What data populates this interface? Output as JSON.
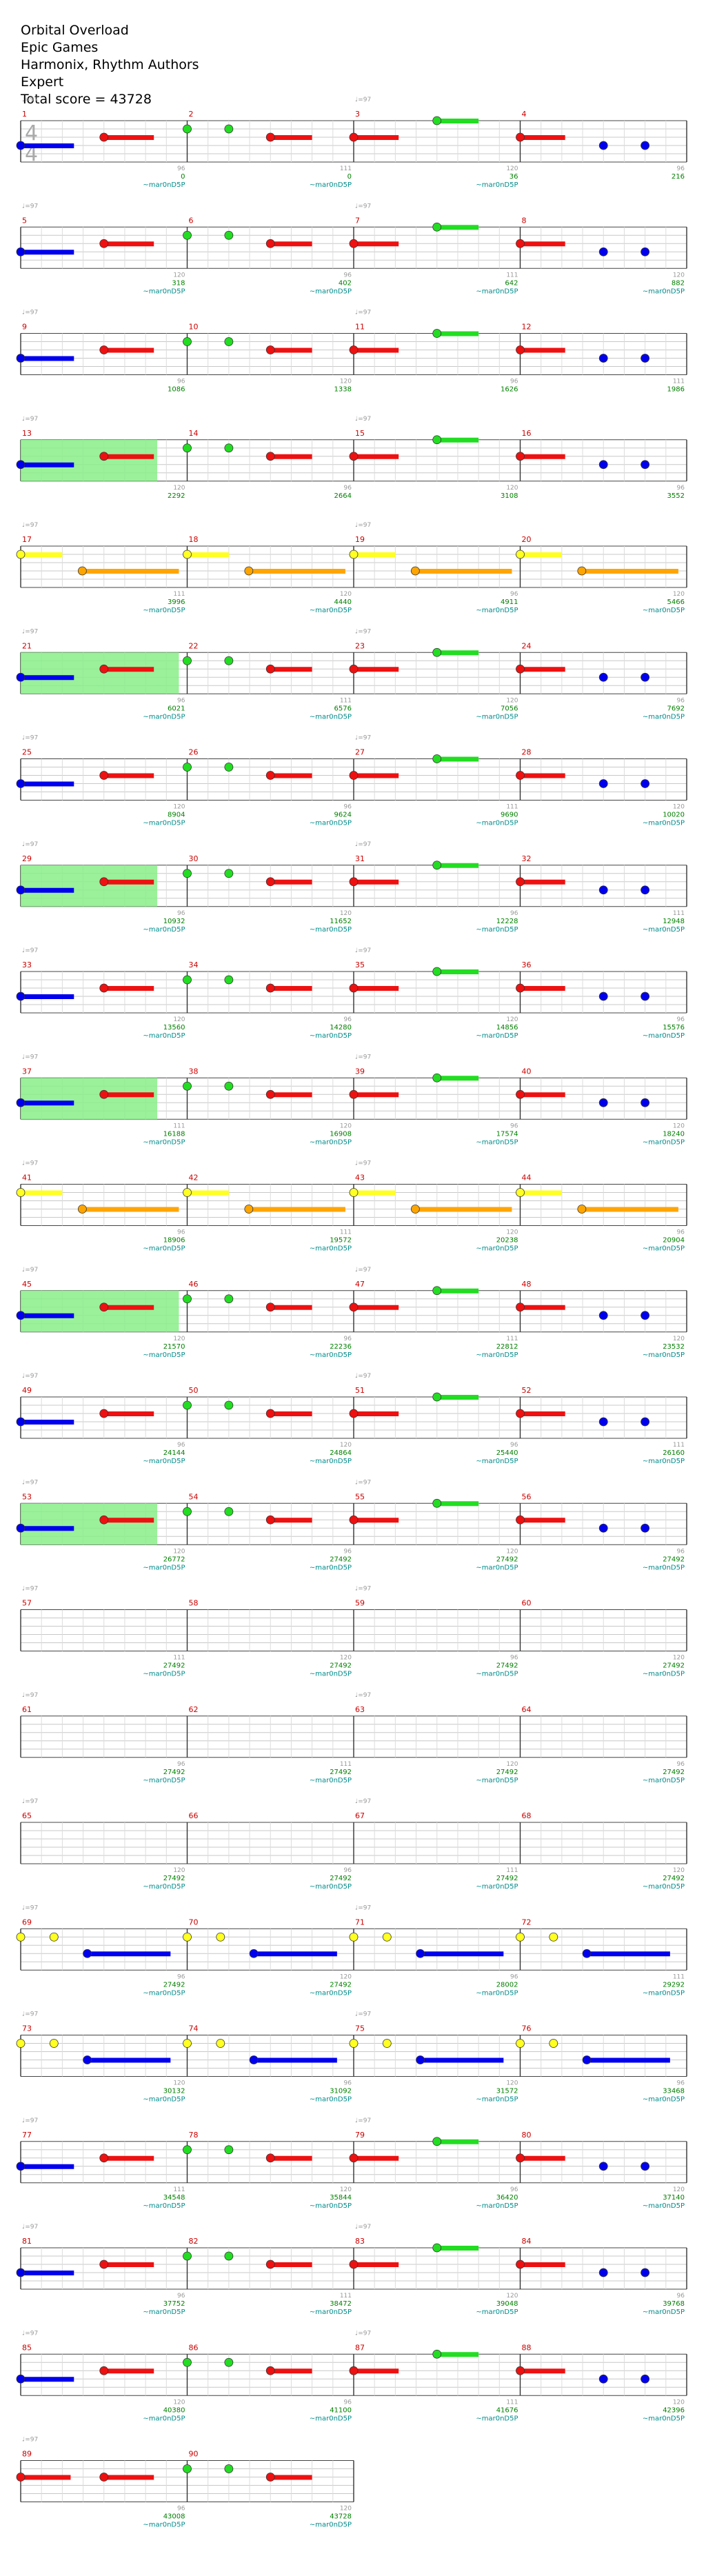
{
  "header": {
    "song_title": "Orbital Overload",
    "artist": "Epic Games",
    "authors": "Harmonix, Rhythm Authors",
    "difficulty": "Expert",
    "total_score_line": "Total score = 43728"
  },
  "time_signature": {
    "numerator": "4",
    "denominator": "4"
  },
  "tempo_marker": "♩=97",
  "colors": {
    "green": "#22dd22",
    "red": "#ee1111",
    "yellow": "#ffff22",
    "blue": "#0000ee",
    "orange": "#ffa500",
    "overdrive_region": "#88ee88",
    "measure_number": "#cc0000",
    "beat_number": "#999999",
    "score_text": "#008000",
    "tag_text": "#008b8b"
  },
  "chart_data": {
    "type": "table",
    "note": "Rock Band style drum/guitar chart: 90 measures; each measure lists bar number, cumulative score and beat-position tags printed beneath it.",
    "measures": [
      {
        "n": "1",
        "score": "",
        "tag": "",
        "tempo": true,
        "ts": true
      },
      {
        "n": "2",
        "score": "0",
        "tag": "~mar0nD5P",
        "tempo": false
      },
      {
        "n": "3",
        "score": "0",
        "tag": "~mar0nD5P",
        "tempo": true
      },
      {
        "n": "4",
        "score": "36",
        "tag": "~mar0nD5P",
        "tempo": false
      },
      {
        "n": "5",
        "score": "216",
        "tag": "",
        "tempo": true
      },
      {
        "n": "6",
        "score": "318",
        "tag": "~mar0nD5P",
        "tempo": false
      },
      {
        "n": "7",
        "score": "402",
        "tag": "~mar0nD5P",
        "tempo": true
      },
      {
        "n": "8",
        "score": "642",
        "tag": "~mar0nD5P",
        "tempo": false
      },
      {
        "n": "9",
        "score": "882",
        "tag": "~mar0nD5P",
        "tempo": true
      },
      {
        "n": "10",
        "score": "1086",
        "tag": "",
        "tempo": false
      },
      {
        "n": "11",
        "score": "1338",
        "tag": "",
        "tempo": true
      },
      {
        "n": "12",
        "score": "1626",
        "tag": "",
        "tempo": false
      },
      {
        "n": "13",
        "score": "1986",
        "tag": "",
        "tempo": true
      },
      {
        "n": "14",
        "score": "2292",
        "tag": "",
        "tempo": false
      },
      {
        "n": "15",
        "score": "2664",
        "tag": "",
        "tempo": true
      },
      {
        "n": "16",
        "score": "3108",
        "tag": "",
        "tempo": false
      },
      {
        "n": "17",
        "score": "3552",
        "tag": "",
        "tempo": true
      },
      {
        "n": "18",
        "score": "3996",
        "tag": "~mar0nD5P",
        "tempo": false
      },
      {
        "n": "19",
        "score": "4440",
        "tag": "~mar0nD5P",
        "tempo": true
      },
      {
        "n": "20",
        "score": "4911",
        "tag": "~mar0nD5P",
        "tempo": false
      },
      {
        "n": "21",
        "score": "5466",
        "tag": "~mar0nD5P",
        "tempo": true
      },
      {
        "n": "22",
        "score": "6021",
        "tag": "~mar0nD5P",
        "tempo": false
      },
      {
        "n": "23",
        "score": "6576",
        "tag": "~mar0nD5P",
        "tempo": true
      },
      {
        "n": "24",
        "score": "7056",
        "tag": "~mar0nD5P",
        "tempo": false
      },
      {
        "n": "25",
        "score": "7692",
        "tag": "~mar0nD5P",
        "tempo": true
      },
      {
        "n": "26",
        "score": "8904",
        "tag": "~mar0nD5P",
        "tempo": false
      },
      {
        "n": "27",
        "score": "9624",
        "tag": "~mar0nD5P",
        "tempo": true
      },
      {
        "n": "28",
        "score": "9690",
        "tag": "~mar0nD5P",
        "tempo": false
      },
      {
        "n": "29",
        "score": "10020",
        "tag": "~mar0nD5P",
        "tempo": true
      },
      {
        "n": "30",
        "score": "10932",
        "tag": "~mar0nD5P",
        "tempo": false
      },
      {
        "n": "31",
        "score": "11652",
        "tag": "~mar0nD5P",
        "tempo": true
      },
      {
        "n": "32",
        "score": "12228",
        "tag": "~mar0nD5P",
        "tempo": false
      },
      {
        "n": "33",
        "score": "12948",
        "tag": "~mar0nD5P",
        "tempo": true
      },
      {
        "n": "34",
        "score": "13560",
        "tag": "~mar0nD5P",
        "tempo": false
      },
      {
        "n": "35",
        "score": "14280",
        "tag": "~mar0nD5P",
        "tempo": true
      },
      {
        "n": "36",
        "score": "14856",
        "tag": "~mar0nD5P",
        "tempo": false
      },
      {
        "n": "37",
        "score": "15576",
        "tag": "~mar0nD5P",
        "tempo": true
      },
      {
        "n": "38",
        "score": "16188",
        "tag": "~mar0nD5P",
        "tempo": false
      },
      {
        "n": "39",
        "score": "16908",
        "tag": "~mar0nD5P",
        "tempo": true
      },
      {
        "n": "40",
        "score": "17574",
        "tag": "~mar0nD5P",
        "tempo": false
      },
      {
        "n": "41",
        "score": "18240",
        "tag": "~mar0nD5P",
        "tempo": true
      },
      {
        "n": "42",
        "score": "18906",
        "tag": "~mar0nD5P",
        "tempo": false
      },
      {
        "n": "43",
        "score": "19572",
        "tag": "~mar0nD5P",
        "tempo": true
      },
      {
        "n": "44",
        "score": "20238",
        "tag": "~mar0nD5P",
        "tempo": false
      },
      {
        "n": "45",
        "score": "20904",
        "tag": "~mar0nD5P",
        "tempo": true
      },
      {
        "n": "46",
        "score": "21570",
        "tag": "~mar0nD5P",
        "tempo": false
      },
      {
        "n": "47",
        "score": "22236",
        "tag": "~mar0nD5P",
        "tempo": true
      },
      {
        "n": "48",
        "score": "22812",
        "tag": "~mar0nD5P",
        "tempo": false
      },
      {
        "n": "49",
        "score": "23532",
        "tag": "~mar0nD5P",
        "tempo": true
      },
      {
        "n": "50",
        "score": "24144",
        "tag": "~mar0nD5P",
        "tempo": false
      },
      {
        "n": "51",
        "score": "24864",
        "tag": "~mar0nD5P",
        "tempo": true
      },
      {
        "n": "52",
        "score": "25440",
        "tag": "~mar0nD5P",
        "tempo": false
      },
      {
        "n": "53",
        "score": "26160",
        "tag": "~mar0nD5P",
        "tempo": true
      },
      {
        "n": "54",
        "score": "26772",
        "tag": "~mar0nD5P",
        "tempo": false
      },
      {
        "n": "55",
        "score": "27492",
        "tag": "~mar0nD5P",
        "tempo": true
      },
      {
        "n": "56",
        "score": "27492",
        "tag": "~mar0nD5P",
        "tempo": false
      },
      {
        "n": "57",
        "score": "27492",
        "tag": "~mar0nD5P",
        "tempo": true
      },
      {
        "n": "58",
        "score": "27492",
        "tag": "~mar0nD5P",
        "tempo": false
      },
      {
        "n": "59",
        "score": "27492",
        "tag": "~mar0nD5P",
        "tempo": true
      },
      {
        "n": "60",
        "score": "27492",
        "tag": "~mar0nD5P",
        "tempo": false
      },
      {
        "n": "61",
        "score": "27492",
        "tag": "~mar0nD5P",
        "tempo": true
      },
      {
        "n": "62",
        "score": "27492",
        "tag": "~mar0nD5P",
        "tempo": false
      },
      {
        "n": "63",
        "score": "27492",
        "tag": "~mar0nD5P",
        "tempo": true
      },
      {
        "n": "64",
        "score": "27492",
        "tag": "~mar0nD5P",
        "tempo": false
      },
      {
        "n": "65",
        "score": "27492",
        "tag": "~mar0nD5P",
        "tempo": true
      },
      {
        "n": "66",
        "score": "27492",
        "tag": "~mar0nD5P",
        "tempo": false
      },
      {
        "n": "67",
        "score": "27492",
        "tag": "~mar0nD5P",
        "tempo": true
      },
      {
        "n": "68",
        "score": "27492",
        "tag": "~mar0nD5P",
        "tempo": false
      },
      {
        "n": "69",
        "score": "27492",
        "tag": "~mar0nD5P",
        "tempo": true
      },
      {
        "n": "70",
        "score": "27492",
        "tag": "~mar0nD5P",
        "tempo": false
      },
      {
        "n": "71",
        "score": "27492",
        "tag": "~mar0nD5P",
        "tempo": true
      },
      {
        "n": "72",
        "score": "28002",
        "tag": "~mar0nD5P",
        "tempo": false
      },
      {
        "n": "73",
        "score": "29292",
        "tag": "~mar0nD5P",
        "tempo": true
      },
      {
        "n": "74",
        "score": "30132",
        "tag": "~mar0nD5P",
        "tempo": false
      },
      {
        "n": "75",
        "score": "31092",
        "tag": "~mar0nD5P",
        "tempo": true
      },
      {
        "n": "76",
        "score": "31572",
        "tag": "~mar0nD5P",
        "tempo": false
      },
      {
        "n": "77",
        "score": "33468",
        "tag": "~mar0nD5P",
        "tempo": true
      },
      {
        "n": "78",
        "score": "34548",
        "tag": "~mar0nD5P",
        "tempo": false
      },
      {
        "n": "79",
        "score": "35844",
        "tag": "~mar0nD5P",
        "tempo": true
      },
      {
        "n": "80",
        "score": "36420",
        "tag": "~mar0nD5P",
        "tempo": false
      },
      {
        "n": "81",
        "score": "37140",
        "tag": "~mar0nD5P",
        "tempo": true
      },
      {
        "n": "82",
        "score": "37752",
        "tag": "~mar0nD5P",
        "tempo": false
      },
      {
        "n": "83",
        "score": "38472",
        "tag": "~mar0nD5P",
        "tempo": true
      },
      {
        "n": "84",
        "score": "39048",
        "tag": "~mar0nD5P",
        "tempo": false
      },
      {
        "n": "85",
        "score": "39768",
        "tag": "~mar0nD5P",
        "tempo": true
      },
      {
        "n": "86",
        "score": "40380",
        "tag": "~mar0nD5P",
        "tempo": false
      },
      {
        "n": "87",
        "score": "41100",
        "tag": "~mar0nD5P",
        "tempo": true
      },
      {
        "n": "88",
        "score": "41676",
        "tag": "~mar0nD5P",
        "tempo": false
      },
      {
        "n": "89",
        "score": "42396",
        "tag": "~mar0nD5P",
        "tempo": true
      },
      {
        "n": "90",
        "score": "43008",
        "tag": "~mar0nD5P",
        "tempo": false
      },
      {
        "n": "",
        "score": "43728",
        "tag": "~mar0nD5P",
        "tempo": false
      }
    ]
  }
}
